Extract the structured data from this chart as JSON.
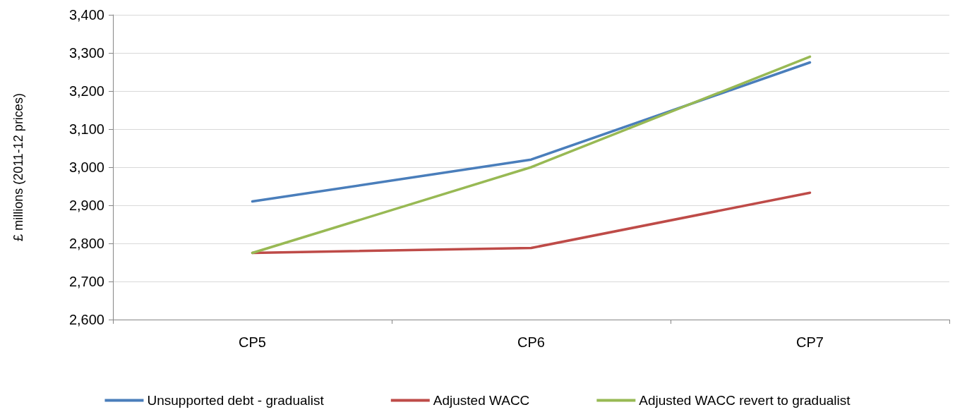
{
  "chart_data": {
    "type": "line",
    "ylabel": "£ millions (2011-12 prices)",
    "categories": [
      "CP5",
      "CP6",
      "CP7"
    ],
    "series": [
      {
        "name": "Unsupported debt - gradualist",
        "color": "#4a7ebb",
        "values": [
          2910,
          3020,
          3275
        ]
      },
      {
        "name": "Adjusted WACC",
        "color": "#be4b48",
        "values": [
          2775,
          2788,
          2933
        ]
      },
      {
        "name": "Adjusted WACC revert to gradualist",
        "color": "#98b954",
        "values": [
          2775,
          3000,
          3290
        ]
      }
    ],
    "ylim": [
      2600,
      3400
    ],
    "yticks": [
      {
        "value": 2600,
        "label": "2,600"
      },
      {
        "value": 2700,
        "label": "2,700"
      },
      {
        "value": 2800,
        "label": "2,800"
      },
      {
        "value": 2900,
        "label": "2,900"
      },
      {
        "value": 3000,
        "label": "3,000"
      },
      {
        "value": 3100,
        "label": "3,100"
      },
      {
        "value": 3200,
        "label": "3,200"
      },
      {
        "value": 3300,
        "label": "3,300"
      },
      {
        "value": 3400,
        "label": "3,400"
      }
    ],
    "grid": "y",
    "legend": "bottom",
    "marker": "none",
    "line_style": "solid"
  }
}
